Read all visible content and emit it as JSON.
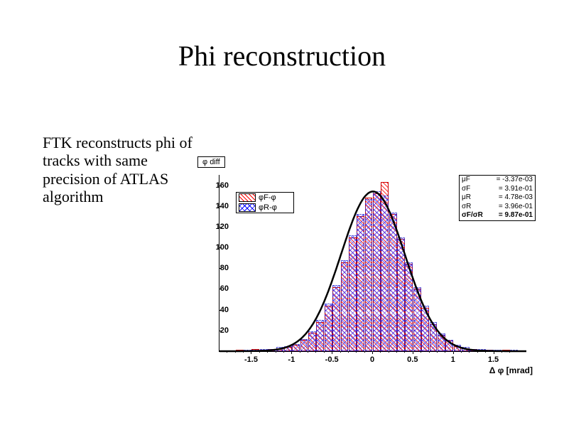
{
  "title": "Phi reconstruction",
  "description": "FTK reconstructs phi of tracks with same precision of ATLAS algorithm",
  "chart": {
    "type": "histogram",
    "plot_title": "φ diff",
    "axis_title": "Δ φ [mrad]",
    "background_color": "#ffffff",
    "axis_color": "#000000",
    "tick_font_size": 11,
    "xlim": [
      -1.9,
      1.9
    ],
    "ylim": [
      0,
      170
    ],
    "xticks": [
      -1.5,
      -1,
      -0.5,
      0,
      0.5,
      1,
      1.5
    ],
    "xtick_labels": [
      "-1.5",
      "-1",
      "-0.5",
      "0",
      "0.5",
      "1",
      "1.5"
    ],
    "yticks": [
      0,
      20,
      40,
      60,
      80,
      100,
      120,
      140,
      160
    ],
    "ytick_labels": [
      "0",
      "20",
      "40",
      "60",
      "80",
      "100",
      "120",
      "140",
      "160"
    ],
    "legend": {
      "items": [
        {
          "label": "φF-φ",
          "swatch": "red"
        },
        {
          "label": "φR-φ",
          "swatch": "blue"
        }
      ]
    },
    "statbox": {
      "rows": [
        {
          "k": "μF",
          "v": "= -3.37e-03",
          "bold": false
        },
        {
          "k": "σF",
          "v": "= 3.91e-01",
          "bold": false
        },
        {
          "k": "μR",
          "v": "= 4.78e-03",
          "bold": false
        },
        {
          "k": "σR",
          "v": "= 3.96e-01",
          "bold": false
        },
        {
          "k": "σF/σR",
          "v": "= 9.87e-01",
          "bold": true
        }
      ]
    },
    "series": [
      {
        "name": "phiF",
        "color": "#ff0000",
        "fill": "diag",
        "bin_width": 0.095,
        "bins": [
          {
            "x": -1.8,
            "y": 0
          },
          {
            "x": -1.7,
            "y": 1
          },
          {
            "x": -1.6,
            "y": 0
          },
          {
            "x": -1.5,
            "y": 2
          },
          {
            "x": -1.4,
            "y": 1
          },
          {
            "x": -1.3,
            "y": 2
          },
          {
            "x": -1.2,
            "y": 3
          },
          {
            "x": -1.1,
            "y": 4
          },
          {
            "x": -1.0,
            "y": 6
          },
          {
            "x": -0.9,
            "y": 11
          },
          {
            "x": -0.8,
            "y": 18
          },
          {
            "x": -0.7,
            "y": 28
          },
          {
            "x": -0.6,
            "y": 44
          },
          {
            "x": -0.5,
            "y": 62
          },
          {
            "x": -0.4,
            "y": 86
          },
          {
            "x": -0.3,
            "y": 110
          },
          {
            "x": -0.2,
            "y": 130
          },
          {
            "x": -0.1,
            "y": 148
          },
          {
            "x": 0.0,
            "y": 152
          },
          {
            "x": 0.1,
            "y": 163
          },
          {
            "x": 0.2,
            "y": 132
          },
          {
            "x": 0.3,
            "y": 108
          },
          {
            "x": 0.4,
            "y": 84
          },
          {
            "x": 0.5,
            "y": 60
          },
          {
            "x": 0.6,
            "y": 42
          },
          {
            "x": 0.7,
            "y": 26
          },
          {
            "x": 0.8,
            "y": 16
          },
          {
            "x": 0.9,
            "y": 10
          },
          {
            "x": 1.0,
            "y": 5
          },
          {
            "x": 1.1,
            "y": 3
          },
          {
            "x": 1.2,
            "y": 2
          },
          {
            "x": 1.3,
            "y": 1
          },
          {
            "x": 1.4,
            "y": 1
          },
          {
            "x": 1.5,
            "y": 0
          },
          {
            "x": 1.6,
            "y": 1
          },
          {
            "x": 1.7,
            "y": 0
          }
        ]
      },
      {
        "name": "phiR",
        "color": "#0000ff",
        "fill": "cross",
        "bin_width": 0.095,
        "bins": [
          {
            "x": -1.8,
            "y": 0
          },
          {
            "x": -1.7,
            "y": 0
          },
          {
            "x": -1.6,
            "y": 1
          },
          {
            "x": -1.5,
            "y": 1
          },
          {
            "x": -1.4,
            "y": 2
          },
          {
            "x": -1.3,
            "y": 2
          },
          {
            "x": -1.2,
            "y": 4
          },
          {
            "x": -1.1,
            "y": 5
          },
          {
            "x": -1.0,
            "y": 7
          },
          {
            "x": -0.9,
            "y": 12
          },
          {
            "x": -0.8,
            "y": 19
          },
          {
            "x": -0.7,
            "y": 30
          },
          {
            "x": -0.6,
            "y": 46
          },
          {
            "x": -0.5,
            "y": 64
          },
          {
            "x": -0.4,
            "y": 88
          },
          {
            "x": -0.3,
            "y": 112
          },
          {
            "x": -0.2,
            "y": 132
          },
          {
            "x": -0.1,
            "y": 147
          },
          {
            "x": 0.0,
            "y": 154
          },
          {
            "x": 0.1,
            "y": 150
          },
          {
            "x": 0.2,
            "y": 134
          },
          {
            "x": 0.3,
            "y": 110
          },
          {
            "x": 0.4,
            "y": 86
          },
          {
            "x": 0.5,
            "y": 62
          },
          {
            "x": 0.6,
            "y": 44
          },
          {
            "x": 0.7,
            "y": 28
          },
          {
            "x": 0.8,
            "y": 17
          },
          {
            "x": 0.9,
            "y": 11
          },
          {
            "x": 1.0,
            "y": 6
          },
          {
            "x": 1.1,
            "y": 4
          },
          {
            "x": 1.2,
            "y": 2
          },
          {
            "x": 1.3,
            "y": 2
          },
          {
            "x": 1.4,
            "y": 1
          },
          {
            "x": 1.5,
            "y": 1
          },
          {
            "x": 1.6,
            "y": 0
          },
          {
            "x": 1.7,
            "y": 1
          }
        ]
      }
    ],
    "fit": {
      "color": "#000000",
      "line_width": 2.5,
      "type": "gaussian",
      "mu": 0.0,
      "sigma": 0.395,
      "amplitude": 154
    }
  }
}
